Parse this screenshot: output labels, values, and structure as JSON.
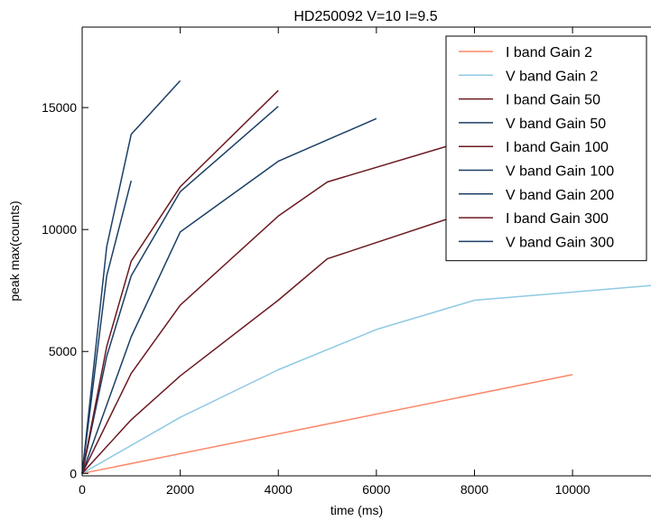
{
  "chart_data": {
    "type": "line",
    "title": "HD250092 V=10 I=9.5",
    "xlabel": "time (ms)",
    "ylabel": "peak max(counts)",
    "xlim": [
      0,
      11600
    ],
    "ylim": [
      -100,
      18300
    ],
    "xticks": [
      0,
      2000,
      4000,
      6000,
      8000,
      10000
    ],
    "xtick_labels": [
      "0",
      "2000",
      "4000",
      "6000",
      "8000",
      "10000"
    ],
    "yticks": [
      0,
      5000,
      10000,
      15000
    ],
    "ytick_labels": [
      "0",
      "5000",
      "10000",
      "15000"
    ],
    "grid": false,
    "legend_position": "top-right",
    "series": [
      {
        "name": "I band Gain 2",
        "color": "#fa8868",
        "x": [
          0,
          10000
        ],
        "y": [
          0,
          4050
        ]
      },
      {
        "name": "V band Gain 2",
        "color": "#8fcae3",
        "x": [
          0,
          2000,
          4000,
          6000,
          8000,
          11600
        ],
        "y": [
          0,
          2300,
          4250,
          5900,
          7100,
          7700
        ]
      },
      {
        "name": "I band Gain 50",
        "color": "#6b1a22",
        "x": [
          0,
          1000,
          2000,
          4000,
          5000,
          8000
        ],
        "y": [
          0,
          2200,
          4000,
          7100,
          8800,
          10800
        ]
      },
      {
        "name": "V band Gain 50",
        "color": "#1c3f66",
        "x": [
          0,
          1000,
          2000,
          4000,
          6000
        ],
        "y": [
          0,
          5600,
          9900,
          12800,
          14550
        ]
      },
      {
        "name": "I band Gain 100",
        "color": "#6b1a22",
        "x": [
          0,
          1000,
          2000,
          4000,
          5000,
          8000
        ],
        "y": [
          0,
          4100,
          6900,
          10550,
          11950,
          13750
        ]
      },
      {
        "name": "V band Gain 100",
        "color": "#1c3f66",
        "x": [
          0,
          500,
          1000,
          2000,
          4000
        ],
        "y": [
          0,
          4800,
          8100,
          11550,
          15050
        ]
      },
      {
        "name": "V band Gain 200",
        "color": "#1c3f66",
        "x": [
          0,
          500,
          1000
        ],
        "y": [
          0,
          8100,
          12000
        ]
      },
      {
        "name": "I band Gain 300",
        "color": "#6b1a22",
        "x": [
          0,
          500,
          1000,
          2000,
          4000
        ],
        "y": [
          0,
          5200,
          8700,
          11750,
          15700
        ]
      },
      {
        "name": "V band Gain 300",
        "color": "#1c3f66",
        "x": [
          0,
          500,
          1000,
          2000
        ],
        "y": [
          0,
          9300,
          13900,
          16100
        ]
      }
    ]
  }
}
